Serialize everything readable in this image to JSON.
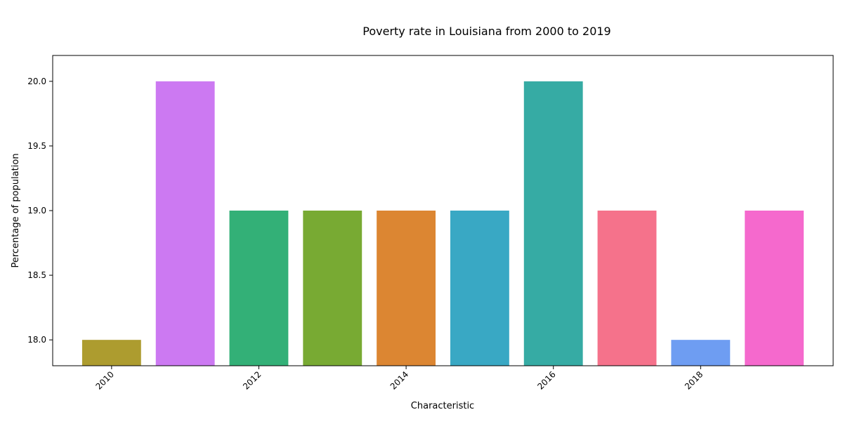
{
  "chart_data": {
    "type": "bar",
    "title": "Poverty rate in Louisiana from 2000 to 2019",
    "xlabel": "Characteristic",
    "ylabel": "Percentage of population",
    "x": [
      2010,
      2011,
      2012,
      2013,
      2014,
      2015,
      2016,
      2017,
      2018,
      2019
    ],
    "values": [
      18,
      20,
      19,
      19,
      19,
      19,
      20,
      19,
      18,
      19
    ],
    "colors": [
      "#ad9c2f",
      "#cc79f2",
      "#33b077",
      "#78aa33",
      "#dc8632",
      "#39a8c4",
      "#36aba4",
      "#f5728b",
      "#6e9df2",
      "#f569cd"
    ],
    "ylim": [
      17.8,
      20.2
    ],
    "yticks": [
      18.0,
      18.5,
      19.0,
      19.5,
      20.0
    ],
    "ytick_labels": [
      "18.0",
      "18.5",
      "19.0",
      "19.5",
      "20.0"
    ],
    "xticks": [
      2010,
      2012,
      2014,
      2016,
      2018
    ],
    "xtick_labels": [
      "2010",
      "2012",
      "2014",
      "2016",
      "2018"
    ],
    "grid": false,
    "legend": "none"
  }
}
